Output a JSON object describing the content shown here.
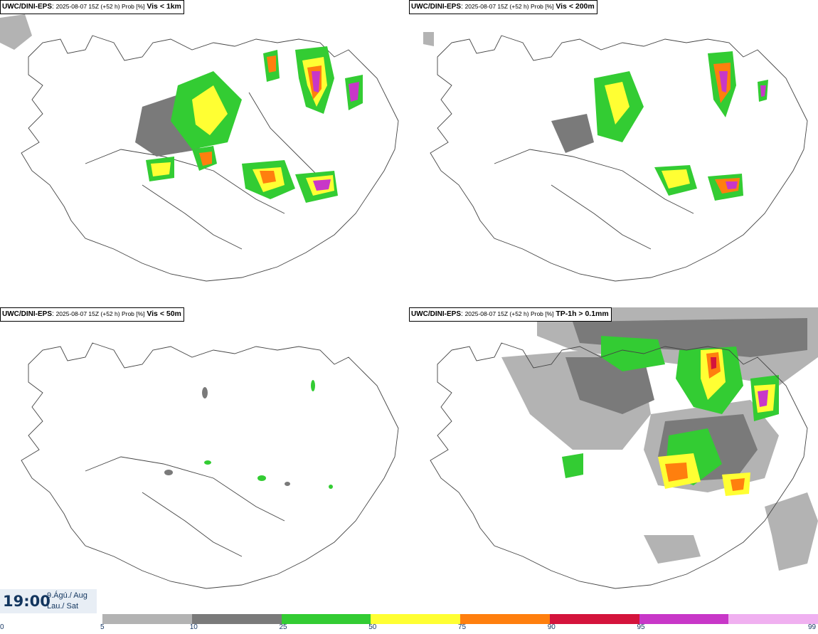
{
  "panels": [
    {
      "model": "UWC/DINI-EPS",
      "meta": "2025-08-07 15Z (+52 h) Prob [%]",
      "variable": "Vis < 1km"
    },
    {
      "model": "UWC/DINI-EPS",
      "meta": "2025-08-07 15Z (+52 h) Prob [%]",
      "variable": "Vis < 200m"
    },
    {
      "model": "UWC/DINI-EPS",
      "meta": "2025-08-07 15Z (+52 h) Prob [%]",
      "variable": "Vis < 50m"
    },
    {
      "model": "UWC/DINI-EPS",
      "meta": "2025-08-07 15Z (+52 h) Prob [%]",
      "variable": "TP-1h > 0.1mm"
    }
  ],
  "valid_time": {
    "time": "19:00",
    "date_line1": "9.Ágú./ Aug",
    "date_line2": "Lau./ Sat"
  },
  "legend": {
    "tick_labels": [
      "0",
      "5",
      "10",
      "25",
      "50",
      "75",
      "90",
      "95",
      "99"
    ],
    "colors": [
      "#b3b3b3",
      "#7a7a7a",
      "#33cc33",
      "#ffff33",
      "#ff7f0e",
      "#d4143c",
      "#c837c8",
      "#f0b0f0"
    ]
  }
}
